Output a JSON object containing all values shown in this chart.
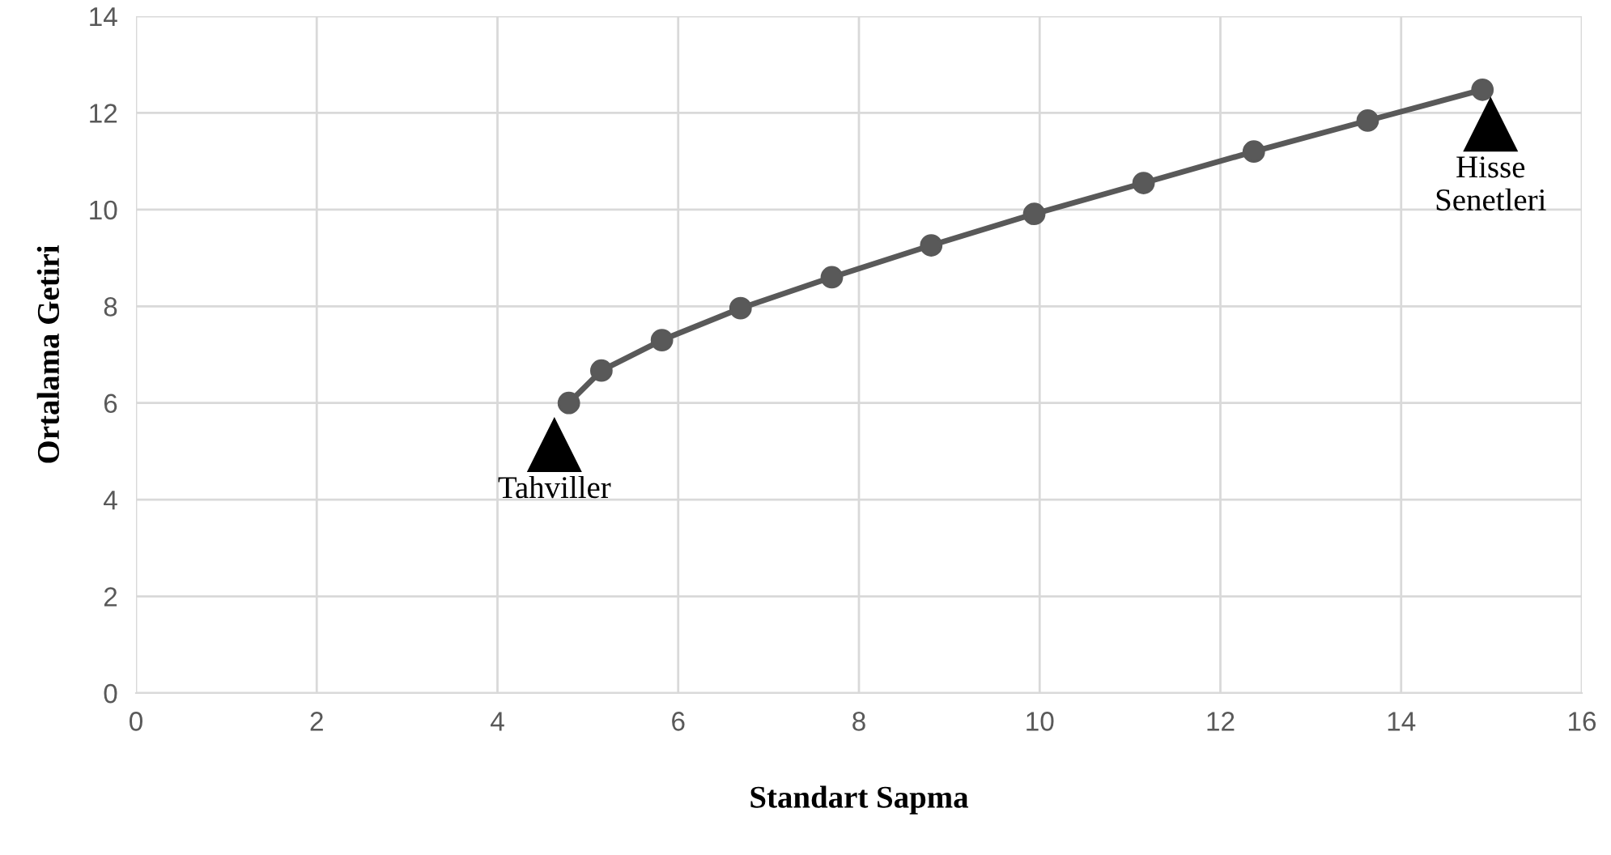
{
  "chart_data": {
    "type": "line",
    "xlabel": "Standart Sapma",
    "ylabel": "Ortalama Getiri",
    "xlim": [
      0,
      16
    ],
    "xticks": [
      0,
      2,
      4,
      6,
      8,
      10,
      12,
      14,
      16
    ],
    "ylim": [
      0,
      14
    ],
    "yticks": [
      0,
      2,
      4,
      6,
      8,
      10,
      12,
      14
    ],
    "grid": true,
    "legend": false,
    "series": [
      {
        "color": "#595959",
        "marker": "circle",
        "line_style": "solid",
        "x": [
          4.79,
          5.15,
          5.82,
          6.69,
          7.7,
          8.8,
          9.94,
          11.15,
          12.37,
          13.63,
          14.9
        ],
        "values": [
          6.0,
          6.67,
          7.3,
          7.96,
          8.6,
          9.26,
          9.91,
          10.55,
          11.2,
          11.84,
          12.48
        ]
      },
      {
        "type": "scatter",
        "color": "#000000",
        "marker": "triangle",
        "x": [
          4.63,
          14.99
        ],
        "values": [
          5.14,
          11.77
        ]
      }
    ],
    "annotations": [
      {
        "text": "Tahviller",
        "x": 4.63,
        "y": 5.14
      },
      {
        "text": "Hisse\nSenetleri",
        "x": 14.99,
        "y": 11.77
      }
    ]
  }
}
